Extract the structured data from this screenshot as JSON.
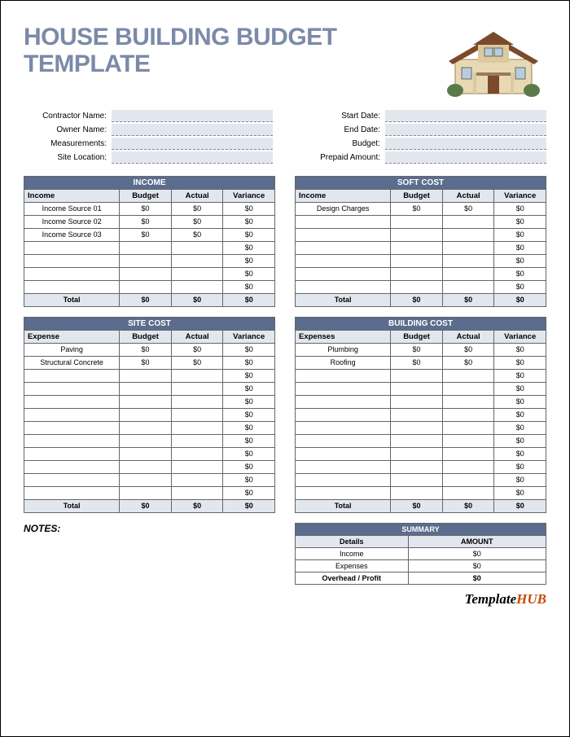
{
  "title": {
    "line1": "HOUSE BUILDING BUDGET",
    "line2": "TEMPLATE"
  },
  "meta": {
    "left": [
      {
        "label": "Contractor Name:"
      },
      {
        "label": "Owner Name:"
      },
      {
        "label": "Measurements:"
      },
      {
        "label": "Site Location:"
      }
    ],
    "right": [
      {
        "label": "Start Date:"
      },
      {
        "label": "End Date:"
      },
      {
        "label": "Budget:"
      },
      {
        "label": "Prepaid Amount:"
      }
    ]
  },
  "tables": {
    "income": {
      "title": "INCOME",
      "cols": [
        "Income",
        "Budget",
        "Actual",
        "Variance"
      ],
      "rows": [
        {
          "name": "Income Source 01",
          "b": "$0",
          "a": "$0",
          "v": "$0"
        },
        {
          "name": "Income Source 02",
          "b": "$0",
          "a": "$0",
          "v": "$0"
        },
        {
          "name": "Income Source 03",
          "b": "$0",
          "a": "$0",
          "v": "$0"
        },
        {
          "name": "",
          "b": "",
          "a": "",
          "v": "$0"
        },
        {
          "name": "",
          "b": "",
          "a": "",
          "v": "$0"
        },
        {
          "name": "",
          "b": "",
          "a": "",
          "v": "$0"
        },
        {
          "name": "",
          "b": "",
          "a": "",
          "v": "$0"
        }
      ],
      "total": {
        "label": "Total",
        "b": "$0",
        "a": "$0",
        "v": "$0"
      }
    },
    "softcost": {
      "title": "SOFT COST",
      "cols": [
        "Income",
        "Budget",
        "Actual",
        "Variance"
      ],
      "rows": [
        {
          "name": "Design Charges",
          "b": "$0",
          "a": "$0",
          "v": "$0"
        },
        {
          "name": "",
          "b": "",
          "a": "",
          "v": "$0"
        },
        {
          "name": "",
          "b": "",
          "a": "",
          "v": "$0"
        },
        {
          "name": "",
          "b": "",
          "a": "",
          "v": "$0"
        },
        {
          "name": "",
          "b": "",
          "a": "",
          "v": "$0"
        },
        {
          "name": "",
          "b": "",
          "a": "",
          "v": "$0"
        },
        {
          "name": "",
          "b": "",
          "a": "",
          "v": "$0"
        }
      ],
      "total": {
        "label": "Total",
        "b": "$0",
        "a": "$0",
        "v": "$0"
      }
    },
    "sitecost": {
      "title": "SITE COST",
      "cols": [
        "Expense",
        "Budget",
        "Actual",
        "Variance"
      ],
      "rows": [
        {
          "name": "Paving",
          "b": "$0",
          "a": "$0",
          "v": "$0"
        },
        {
          "name": "Structural Concrete",
          "b": "$0",
          "a": "$0",
          "v": "$0"
        },
        {
          "name": "",
          "b": "",
          "a": "",
          "v": "$0"
        },
        {
          "name": "",
          "b": "",
          "a": "",
          "v": "$0"
        },
        {
          "name": "",
          "b": "",
          "a": "",
          "v": "$0"
        },
        {
          "name": "",
          "b": "",
          "a": "",
          "v": "$0"
        },
        {
          "name": "",
          "b": "",
          "a": "",
          "v": "$0"
        },
        {
          "name": "",
          "b": "",
          "a": "",
          "v": "$0"
        },
        {
          "name": "",
          "b": "",
          "a": "",
          "v": "$0"
        },
        {
          "name": "",
          "b": "",
          "a": "",
          "v": "$0"
        },
        {
          "name": "",
          "b": "",
          "a": "",
          "v": "$0"
        },
        {
          "name": "",
          "b": "",
          "a": "",
          "v": "$0"
        }
      ],
      "total": {
        "label": "Total",
        "b": "$0",
        "a": "$0",
        "v": "$0"
      }
    },
    "buildingcost": {
      "title": "BUILDING COST",
      "cols": [
        "Expenses",
        "Budget",
        "Actual",
        "Variance"
      ],
      "rows": [
        {
          "name": "Plumbing",
          "b": "$0",
          "a": "$0",
          "v": "$0"
        },
        {
          "name": "Roofing",
          "b": "$0",
          "a": "$0",
          "v": "$0"
        },
        {
          "name": "",
          "b": "",
          "a": "",
          "v": "$0"
        },
        {
          "name": "",
          "b": "",
          "a": "",
          "v": "$0"
        },
        {
          "name": "",
          "b": "",
          "a": "",
          "v": "$0"
        },
        {
          "name": "",
          "b": "",
          "a": "",
          "v": "$0"
        },
        {
          "name": "",
          "b": "",
          "a": "",
          "v": "$0"
        },
        {
          "name": "",
          "b": "",
          "a": "",
          "v": "$0"
        },
        {
          "name": "",
          "b": "",
          "a": "",
          "v": "$0"
        },
        {
          "name": "",
          "b": "",
          "a": "",
          "v": "$0"
        },
        {
          "name": "",
          "b": "",
          "a": "",
          "v": "$0"
        },
        {
          "name": "",
          "b": "",
          "a": "",
          "v": "$0"
        }
      ],
      "total": {
        "label": "Total",
        "b": "$0",
        "a": "$0",
        "v": "$0"
      }
    }
  },
  "notes": {
    "label": "NOTES:"
  },
  "summary": {
    "title": "SUMMARY",
    "cols": [
      "Details",
      "AMOUNT"
    ],
    "rows": [
      {
        "d": "Income",
        "a": "$0"
      },
      {
        "d": "Expenses",
        "a": "$0"
      }
    ],
    "profit": {
      "d": "Overhead / Profit",
      "a": "$0"
    }
  },
  "logo": {
    "a": "Template",
    "b": "HUB"
  },
  "style": {
    "accent": "#5b6d8e",
    "light": "#e2e7ef",
    "titlecolor": "#7b8aa8",
    "border": "#666",
    "logob": "#c54a00"
  }
}
